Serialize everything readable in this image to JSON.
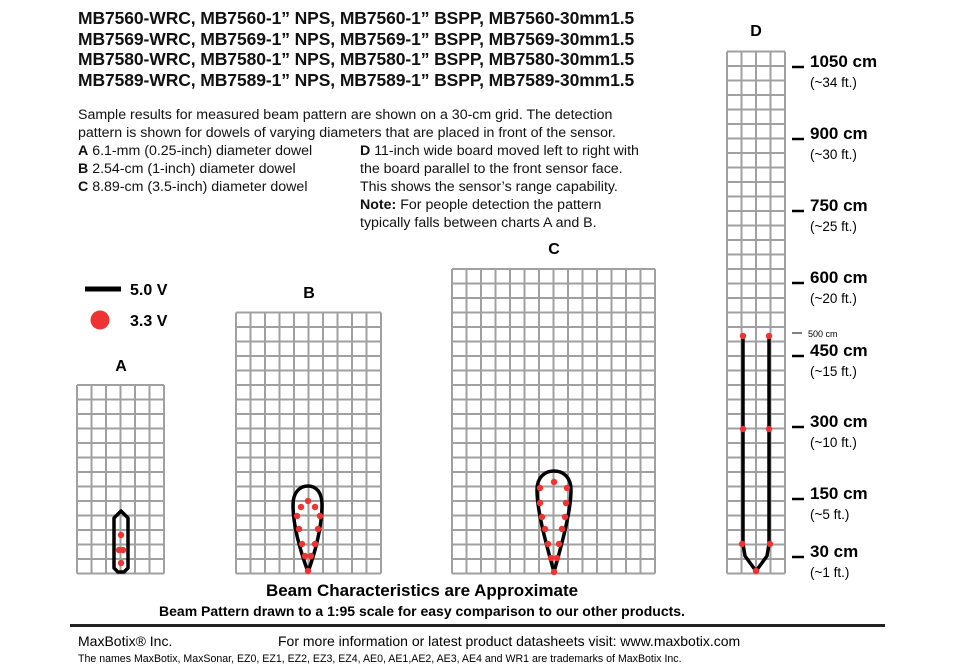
{
  "title_lines": [
    "MB7560-WRC, MB7560-1” NPS, MB7560-1” BSPP, MB7560-30mm1.5",
    "MB7569-WRC, MB7569-1” NPS, MB7569-1” BSPP, MB7569-30mm1.5",
    "MB7580-WRC, MB7580-1” NPS, MB7580-1” BSPP, MB7580-30mm1.5",
    "MB7589-WRC, MB7589-1” NPS, MB7589-1” BSPP, MB7589-30mm1.5"
  ],
  "intro_lines": [
    "Sample results for measured beam pattern are shown on a 30-cm grid. The detection",
    "pattern is shown for dowels of varying diameters that are placed in front of the sensor."
  ],
  "targets": [
    {
      "key": "A",
      "text": "6.1-mm (0.25-inch) diameter dowel"
    },
    {
      "key": "B",
      "text": "2.54-cm (1-inch) diameter dowel"
    },
    {
      "key": "C",
      "text": "8.89-cm (3.5-inch) diameter dowel"
    }
  ],
  "target_d": {
    "key": "D",
    "lines": [
      "11-inch wide board moved left to right with",
      "the board parallel to the front sensor face.",
      "This shows the sensor’s range capability."
    ],
    "note_label": "Note:",
    "note_lines": [
      "For people detection the pattern",
      "typically falls between charts A and B."
    ]
  },
  "legend": {
    "line_label": "5.0 V",
    "dot_label": "3.3 V",
    "line_color": "#000000",
    "dot_color": "#ee3333"
  },
  "charts": {
    "a_label": "A",
    "b_label": "B",
    "c_label": "C",
    "d_label": "D",
    "grid_cell": "30 cm",
    "grid_color": "#a0a0a0"
  },
  "scale": [
    {
      "cm": "1050 cm",
      "ft": "(~34 ft.)"
    },
    {
      "cm": "900 cm",
      "ft": "(~30 ft.)"
    },
    {
      "cm": "750 cm",
      "ft": "(~25 ft.)"
    },
    {
      "cm": "600 cm",
      "ft": "(~20 ft.)"
    },
    {
      "cm": "450 cm",
      "ft": "(~15 ft.)"
    },
    {
      "cm": "300 cm",
      "ft": "(~10 ft.)"
    },
    {
      "cm": "150 cm",
      "ft": "(~5 ft.)"
    },
    {
      "cm": "30 cm",
      "ft": "(~1 ft.)"
    }
  ],
  "scale_minor": "500 cm",
  "disclaimer": "Beam Characteristics are Approximate",
  "scale_note": "Beam Pattern drawn to a 1:95 scale for easy comparison to our other products.",
  "footer": {
    "company": "MaxBotix® Inc.",
    "info": "For more information or latest product datasheets visit:  www.maxbotix.com",
    "trademarks": "The names MaxBotix, MaxSonar, EZ0, EZ1, EZ2, EZ3, EZ4, AE0, AE1,AE2, AE3, AE4 and WR1 are trademarks of MaxBotix Inc."
  }
}
